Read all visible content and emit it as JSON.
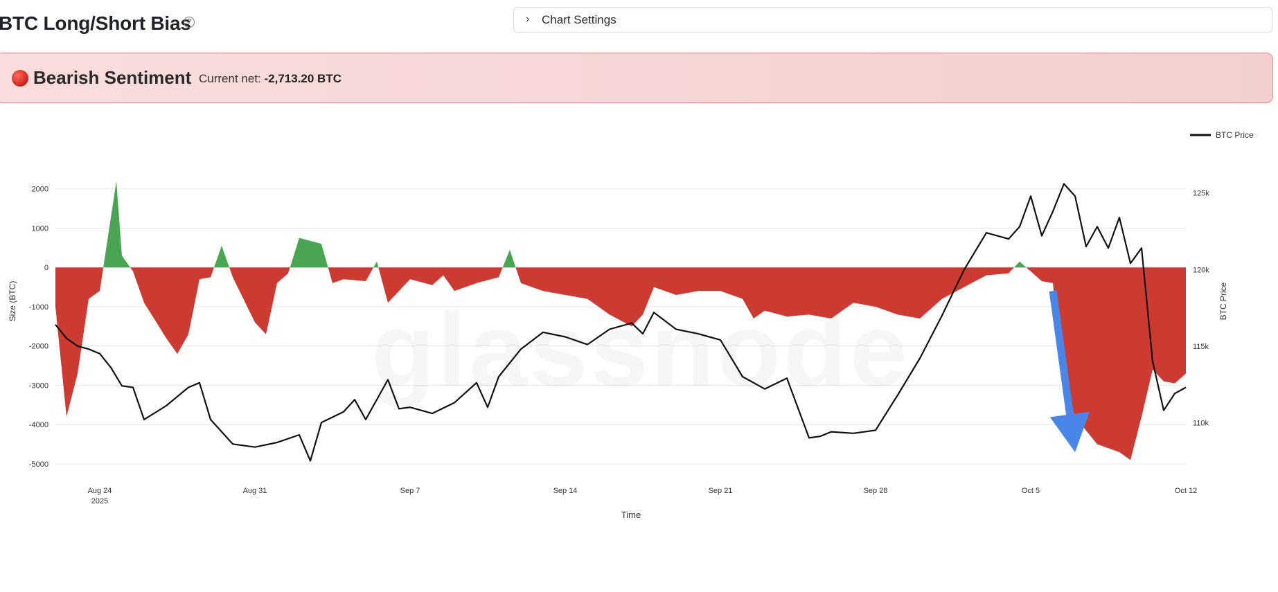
{
  "header": {
    "title": "BTC Long/Short Bias",
    "help_icon": "question-circle-icon"
  },
  "settings": {
    "label": "Chart Settings",
    "icon": "chevron-right-icon"
  },
  "banner": {
    "sentiment": "Bearish Sentiment",
    "net_label": "Current net:",
    "net_value": "-2,713.20 BTC",
    "dot_color": "#d42a1f"
  },
  "colors": {
    "positive": "#4aa553",
    "negative": "#cc3a32",
    "price": "#111111",
    "arrow": "#4a86e8"
  },
  "watermark": "glassnode",
  "chart_data": {
    "type": "area",
    "xlabel": "Time",
    "ylabel_left": "Size (BTC)",
    "ylabel_right": "BTC Price",
    "legend": {
      "entries": [
        "BTC Price"
      ],
      "position": "top-right"
    },
    "x_ticks": [
      {
        "date": "2025-08-24",
        "label": "Aug 24",
        "sublabel": "2025"
      },
      {
        "date": "2025-08-31",
        "label": "Aug 31"
      },
      {
        "date": "2025-09-07",
        "label": "Sep 7"
      },
      {
        "date": "2025-09-14",
        "label": "Sep 14"
      },
      {
        "date": "2025-09-21",
        "label": "Sep 21"
      },
      {
        "date": "2025-09-28",
        "label": "Sep 28"
      },
      {
        "date": "2025-10-05",
        "label": "Oct 5"
      },
      {
        "date": "2025-10-12",
        "label": "Oct 12"
      }
    ],
    "x_range": [
      "2025-08-22",
      "2025-10-12"
    ],
    "left_axis": {
      "ticks": [
        2000,
        1000,
        0,
        -1000,
        -2000,
        -3000,
        -4000,
        -5000
      ],
      "ylim": [
        -5000,
        2400
      ]
    },
    "right_axis": {
      "ticks": [
        125000,
        120000,
        115000,
        110000
      ],
      "tick_labels": [
        "125k",
        "120k",
        "115k",
        "110k"
      ],
      "ylim": [
        107300,
        126300
      ]
    },
    "grid": true,
    "series": [
      {
        "name": "Size (BTC)",
        "axis": "left",
        "points": [
          [
            "2025-08-22",
            -1000
          ],
          [
            "2025-08-22T12",
            -3800
          ],
          [
            "2025-08-23",
            -2700
          ],
          [
            "2025-08-23T12",
            -800
          ],
          [
            "2025-08-24",
            -600
          ],
          [
            "2025-08-24T18",
            2200
          ],
          [
            "2025-08-25",
            300
          ],
          [
            "2025-08-25T12",
            -100
          ],
          [
            "2025-08-26",
            -900
          ],
          [
            "2025-08-27",
            -1800
          ],
          [
            "2025-08-27T12",
            -2200
          ],
          [
            "2025-08-28",
            -1700
          ],
          [
            "2025-08-28T12",
            -300
          ],
          [
            "2025-08-29",
            -250
          ],
          [
            "2025-08-29T12",
            550
          ],
          [
            "2025-08-30",
            -250
          ],
          [
            "2025-08-31",
            -1400
          ],
          [
            "2025-08-31T12",
            -1700
          ],
          [
            "2025-09-01",
            -400
          ],
          [
            "2025-09-01T12",
            -150
          ],
          [
            "2025-09-02",
            750
          ],
          [
            "2025-09-03",
            600
          ],
          [
            "2025-09-03T12",
            -400
          ],
          [
            "2025-09-04",
            -300
          ],
          [
            "2025-09-05",
            -350
          ],
          [
            "2025-09-05T12",
            150
          ],
          [
            "2025-09-06",
            -900
          ],
          [
            "2025-09-07",
            -300
          ],
          [
            "2025-09-08",
            -450
          ],
          [
            "2025-09-08T12",
            -200
          ],
          [
            "2025-09-09",
            -600
          ],
          [
            "2025-09-10",
            -400
          ],
          [
            "2025-09-11",
            -250
          ],
          [
            "2025-09-11T12",
            450
          ],
          [
            "2025-09-12",
            -400
          ],
          [
            "2025-09-13",
            -600
          ],
          [
            "2025-09-14",
            -700
          ],
          [
            "2025-09-15",
            -800
          ],
          [
            "2025-09-16",
            -1200
          ],
          [
            "2025-09-17",
            -1500
          ],
          [
            "2025-09-17T12",
            -1200
          ],
          [
            "2025-09-18",
            -500
          ],
          [
            "2025-09-19",
            -700
          ],
          [
            "2025-09-20",
            -600
          ],
          [
            "2025-09-21",
            -600
          ],
          [
            "2025-09-22",
            -800
          ],
          [
            "2025-09-22T12",
            -1300
          ],
          [
            "2025-09-23",
            -1100
          ],
          [
            "2025-09-24",
            -1250
          ],
          [
            "2025-09-25",
            -1200
          ],
          [
            "2025-09-26",
            -1300
          ],
          [
            "2025-09-27",
            -900
          ],
          [
            "2025-09-28",
            -1000
          ],
          [
            "2025-09-29",
            -1200
          ],
          [
            "2025-09-30",
            -1300
          ],
          [
            "2025-10-01",
            -800
          ],
          [
            "2025-10-02",
            -500
          ],
          [
            "2025-10-03",
            -200
          ],
          [
            "2025-10-04",
            -150
          ],
          [
            "2025-10-04T12",
            150
          ],
          [
            "2025-10-05",
            -100
          ],
          [
            "2025-10-05T12",
            -350
          ],
          [
            "2025-10-06",
            -400
          ],
          [
            "2025-10-06T12",
            -3000
          ],
          [
            "2025-10-07",
            -3800
          ],
          [
            "2025-10-08",
            -4500
          ],
          [
            "2025-10-09",
            -4700
          ],
          [
            "2025-10-09T12",
            -4900
          ],
          [
            "2025-10-10",
            -3800
          ],
          [
            "2025-10-10T12",
            -2600
          ],
          [
            "2025-10-11",
            -2900
          ],
          [
            "2025-10-11T12",
            -2950
          ],
          [
            "2025-10-12",
            -2700
          ]
        ]
      },
      {
        "name": "BTC Price",
        "axis": "right",
        "points": [
          [
            "2025-08-22",
            116400
          ],
          [
            "2025-08-22T12",
            115500
          ],
          [
            "2025-08-23",
            115000
          ],
          [
            "2025-08-23T12",
            114800
          ],
          [
            "2025-08-24",
            114500
          ],
          [
            "2025-08-24T12",
            113600
          ],
          [
            "2025-08-25",
            112400
          ],
          [
            "2025-08-25T12",
            112300
          ],
          [
            "2025-08-26",
            110200
          ],
          [
            "2025-08-27",
            111100
          ],
          [
            "2025-08-28",
            112300
          ],
          [
            "2025-08-28T12",
            112600
          ],
          [
            "2025-08-29",
            110200
          ],
          [
            "2025-08-30",
            108600
          ],
          [
            "2025-08-31",
            108400
          ],
          [
            "2025-09-01",
            108700
          ],
          [
            "2025-09-02",
            109200
          ],
          [
            "2025-09-02T12",
            107500
          ],
          [
            "2025-09-03",
            110000
          ],
          [
            "2025-09-04",
            110700
          ],
          [
            "2025-09-04T12",
            111500
          ],
          [
            "2025-09-05",
            110200
          ],
          [
            "2025-09-06",
            112800
          ],
          [
            "2025-09-06T12",
            110900
          ],
          [
            "2025-09-07",
            111000
          ],
          [
            "2025-09-08",
            110600
          ],
          [
            "2025-09-09",
            111300
          ],
          [
            "2025-09-10",
            112600
          ],
          [
            "2025-09-10T12",
            111000
          ],
          [
            "2025-09-11",
            113000
          ],
          [
            "2025-09-12",
            114800
          ],
          [
            "2025-09-13",
            115900
          ],
          [
            "2025-09-14",
            115600
          ],
          [
            "2025-09-15",
            115100
          ],
          [
            "2025-09-16",
            116100
          ],
          [
            "2025-09-17",
            116500
          ],
          [
            "2025-09-17T12",
            115800
          ],
          [
            "2025-09-18",
            117200
          ],
          [
            "2025-09-19",
            116100
          ],
          [
            "2025-09-20",
            115800
          ],
          [
            "2025-09-21",
            115400
          ],
          [
            "2025-09-22",
            113000
          ],
          [
            "2025-09-23",
            112200
          ],
          [
            "2025-09-24",
            112900
          ],
          [
            "2025-09-25",
            109000
          ],
          [
            "2025-09-25T12",
            109100
          ],
          [
            "2025-09-26",
            109400
          ],
          [
            "2025-09-27",
            109300
          ],
          [
            "2025-09-28",
            109500
          ],
          [
            "2025-09-29",
            111800
          ],
          [
            "2025-09-30",
            114200
          ],
          [
            "2025-10-01",
            117000
          ],
          [
            "2025-10-01T12",
            118500
          ],
          [
            "2025-10-02",
            120000
          ],
          [
            "2025-10-03",
            122400
          ],
          [
            "2025-10-04",
            122000
          ],
          [
            "2025-10-04T12",
            122800
          ],
          [
            "2025-10-05",
            124800
          ],
          [
            "2025-10-05T12",
            122200
          ],
          [
            "2025-10-06",
            123800
          ],
          [
            "2025-10-06T12",
            125600
          ],
          [
            "2025-10-07",
            124800
          ],
          [
            "2025-10-07T12",
            121500
          ],
          [
            "2025-10-08",
            122800
          ],
          [
            "2025-10-08T12",
            121400
          ],
          [
            "2025-10-09",
            123400
          ],
          [
            "2025-10-09T12",
            120400
          ],
          [
            "2025-10-10",
            121400
          ],
          [
            "2025-10-10T12",
            114000
          ],
          [
            "2025-10-11",
            110800
          ],
          [
            "2025-10-11T12",
            111900
          ],
          [
            "2025-10-12",
            112300
          ]
        ]
      }
    ],
    "annotations": [
      {
        "type": "arrow",
        "color": "#4a86e8",
        "direction": "down",
        "from": [
          "2025-10-06",
          -600
        ],
        "to": [
          "2025-10-07",
          -4700
        ]
      }
    ]
  }
}
